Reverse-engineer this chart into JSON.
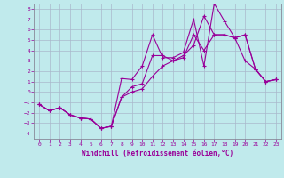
{
  "xlabel": "Windchill (Refroidissement éolien,°C)",
  "xlim": [
    -0.5,
    23.5
  ],
  "ylim": [
    -4.5,
    8.5
  ],
  "xticks": [
    0,
    1,
    2,
    3,
    4,
    5,
    6,
    7,
    8,
    9,
    10,
    11,
    12,
    13,
    14,
    15,
    16,
    17,
    18,
    19,
    20,
    21,
    22,
    23
  ],
  "yticks": [
    -4,
    -3,
    -2,
    -1,
    0,
    1,
    2,
    3,
    4,
    5,
    6,
    7,
    8
  ],
  "line_color": "#990099",
  "bg_color": "#c0eaec",
  "grid_color": "#aab8cc",
  "line1_x": [
    0,
    1,
    2,
    3,
    4,
    5,
    6,
    7,
    8,
    9,
    10,
    11,
    12,
    13,
    14,
    15,
    16,
    17,
    18,
    19,
    20,
    21,
    22,
    23
  ],
  "line1_y": [
    -1.2,
    -1.8,
    -1.5,
    -2.2,
    -2.5,
    -2.6,
    -3.5,
    -3.3,
    -0.5,
    0.0,
    0.3,
    1.5,
    2.5,
    3.0,
    3.3,
    5.5,
    4.0,
    5.5,
    5.5,
    5.2,
    3.0,
    2.2,
    1.0,
    1.2
  ],
  "line2_x": [
    0,
    1,
    2,
    3,
    4,
    5,
    6,
    7,
    8,
    9,
    10,
    11,
    12,
    13,
    14,
    15,
    16,
    17,
    18,
    19,
    20,
    21,
    22,
    23
  ],
  "line2_y": [
    -1.2,
    -1.8,
    -1.5,
    -2.2,
    -2.5,
    -2.6,
    -3.5,
    -3.3,
    1.3,
    1.2,
    2.5,
    5.5,
    3.3,
    3.3,
    3.8,
    7.0,
    2.5,
    8.5,
    6.8,
    5.2,
    5.5,
    2.2,
    1.0,
    1.2
  ],
  "line3_x": [
    0,
    1,
    2,
    3,
    4,
    5,
    6,
    7,
    8,
    9,
    10,
    11,
    12,
    13,
    14,
    15,
    16,
    17,
    18,
    19,
    20,
    21,
    22,
    23
  ],
  "line3_y": [
    -1.2,
    -1.8,
    -1.5,
    -2.2,
    -2.5,
    -2.6,
    -3.5,
    -3.3,
    -0.5,
    0.5,
    0.8,
    3.5,
    3.5,
    3.0,
    3.5,
    4.5,
    7.3,
    5.5,
    5.5,
    5.2,
    5.5,
    2.2,
    1.0,
    1.2
  ],
  "marker": "+",
  "marker_size": 3,
  "linewidth": 0.8,
  "tick_fontsize": 4.5,
  "xlabel_fontsize": 5.5
}
